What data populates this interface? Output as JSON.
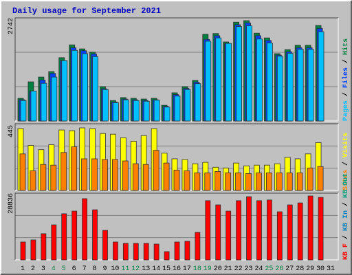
{
  "chart_data": [
    {
      "type": "bar",
      "title": "Daily usage for September 2021",
      "ylim": [
        0,
        2742
      ],
      "yticks": [
        2742
      ],
      "legend_separator": " / ",
      "series": [
        {
          "name": "Hits",
          "color": "#008040",
          "values": [
            620,
            1070,
            1200,
            1350,
            1730,
            2080,
            1970,
            1880,
            940,
            560,
            640,
            620,
            600,
            620,
            430,
            770,
            940,
            1110,
            2370,
            2390,
            2160,
            2700,
            2742,
            2400,
            2270,
            1840,
            1950,
            2070,
            2070,
            2610,
            0
          ]
        },
        {
          "name": "Files",
          "color": "#0040ff",
          "values": [
            580,
            810,
            1120,
            1300,
            1650,
            2000,
            1920,
            1830,
            880,
            520,
            600,
            580,
            560,
            580,
            400,
            720,
            890,
            1060,
            2230,
            2330,
            2120,
            2630,
            2680,
            2330,
            2200,
            1800,
            1890,
            2000,
            2000,
            2530,
            0
          ]
        },
        {
          "name": "Pages",
          "color": "#00c0ff",
          "values": [
            560,
            820,
            1030,
            1200,
            1650,
            1930,
            1840,
            1760,
            860,
            500,
            580,
            560,
            540,
            570,
            380,
            680,
            860,
            1020,
            2180,
            2270,
            2120,
            2580,
            2600,
            2240,
            2130,
            1770,
            1850,
            1960,
            1960,
            2440,
            0
          ]
        }
      ]
    },
    {
      "type": "bar",
      "ylim": [
        0,
        445
      ],
      "yticks": [
        445
      ],
      "legend_separator": " / ",
      "series": [
        {
          "name": "Visits",
          "color": "#ffff00",
          "values": [
            440,
            320,
            290,
            325,
            430,
            425,
            445,
            440,
            405,
            400,
            375,
            350,
            390,
            440,
            265,
            225,
            220,
            190,
            200,
            165,
            160,
            195,
            175,
            180,
            180,
            190,
            235,
            225,
            260,
            340,
            0
          ]
        },
        {
          "name": "Sites",
          "color": "#ff8000",
          "values": [
            260,
            140,
            185,
            180,
            270,
            310,
            225,
            225,
            220,
            220,
            210,
            190,
            185,
            285,
            195,
            145,
            140,
            125,
            125,
            135,
            125,
            125,
            120,
            125,
            125,
            125,
            125,
            125,
            160,
            170,
            0
          ]
        }
      ]
    },
    {
      "type": "bar",
      "ylim": [
        0,
        28836
      ],
      "yticks": [
        28836
      ],
      "legend_separator": " / ",
      "categories": [
        "1",
        "2",
        "3",
        "4",
        "5",
        "6",
        "7",
        "8",
        "9",
        "10",
        "11",
        "12",
        "13",
        "14",
        "15",
        "16",
        "17",
        "18",
        "19",
        "20",
        "21",
        "22",
        "23",
        "24",
        "25",
        "26",
        "27",
        "28",
        "29",
        "30",
        "31"
      ],
      "category_colors": [
        "#000000",
        "#000000",
        "#000000",
        "#008040",
        "#008040",
        "#000000",
        "#000000",
        "#000000",
        "#000000",
        "#000000",
        "#008040",
        "#008040",
        "#000000",
        "#000000",
        "#000000",
        "#000000",
        "#000000",
        "#008040",
        "#008040",
        "#000000",
        "#000000",
        "#000000",
        "#000000",
        "#000000",
        "#008040",
        "#008040",
        "#000000",
        "#000000",
        "#000000",
        "#000000",
        "#000000"
      ],
      "series": [
        {
          "name": "KB F",
          "color": "#ff0000",
          "values": [
            8060,
            9000,
            11800,
            15800,
            20800,
            22000,
            27600,
            22600,
            13300,
            8060,
            7440,
            7440,
            7440,
            7130,
            3720,
            8060,
            8370,
            12400,
            26700,
            24800,
            22000,
            26700,
            28500,
            26700,
            27000,
            21700,
            24800,
            25700,
            28836,
            28200,
            0
          ]
        },
        {
          "name": "KB In",
          "color": "#0080c0"
        },
        {
          "name": "KB Out",
          "color": "#00a080"
        }
      ]
    }
  ]
}
